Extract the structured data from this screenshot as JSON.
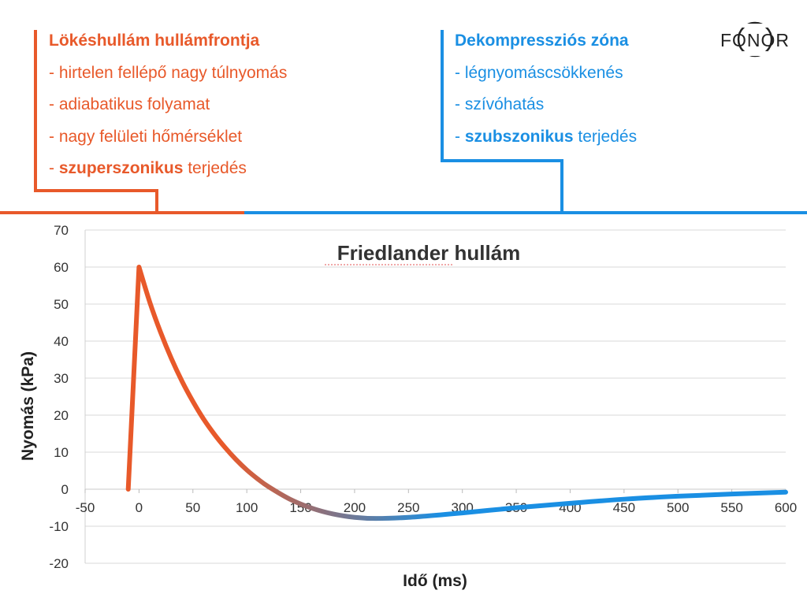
{
  "logo": {
    "text": "FONOR"
  },
  "callouts": {
    "left": {
      "title": "Lökéshullám hullámfrontja",
      "item1": "- hirtelen fellépő nagy túlnyomás",
      "item2": "- adiabatikus folyamat",
      "item3": "- nagy felületi hőmérséklet",
      "item4_prefix": "- ",
      "item4_bold": "szuperszonikus",
      "item4_rest": " terjedés"
    },
    "right": {
      "title": "Dekompressziós zóna",
      "item1": "- légnyomáscsökkenés",
      "item2": "- szívóhatás",
      "item3_prefix": "- ",
      "item3_bold": "szubszonikus",
      "item3_rest": " terjedés"
    }
  },
  "colors": {
    "shock": "#e8592a",
    "decompression": "#1a8fe3",
    "grid": "#d9d9d9",
    "text": "#222222"
  },
  "chart_data": {
    "type": "line",
    "title": "Friedlander hullám",
    "xlabel": "Idő (ms)",
    "ylabel": "Nyomás (kPa)",
    "xlim": [
      -50,
      600
    ],
    "ylim": [
      -20,
      70
    ],
    "x_ticks": [
      -50,
      0,
      50,
      100,
      150,
      200,
      250,
      300,
      350,
      400,
      450,
      500,
      550,
      600
    ],
    "y_ticks": [
      70,
      60,
      50,
      40,
      30,
      20,
      10,
      0,
      -10,
      -20
    ],
    "grid": true,
    "legend": "none",
    "series": [
      {
        "color_start": "#e8592a",
        "color_end": "#1a8fe3",
        "x": [
          -10,
          0,
          10,
          20,
          30,
          40,
          50,
          60,
          70,
          80,
          90,
          100,
          110,
          120,
          140,
          160,
          180,
          200,
          220,
          250,
          300,
          350,
          400,
          450,
          500,
          550,
          600
        ],
        "y": [
          0,
          60,
          50.5,
          42.4,
          35.3,
          29.1,
          23.7,
          18.9,
          14.8,
          11.2,
          8,
          5.2,
          2.8,
          0.7,
          -2.7,
          -5.1,
          -6.7,
          -7.6,
          -7.9,
          -7.6,
          -6.4,
          -5.0,
          -3.8,
          -2.7,
          -1.9,
          -1.3,
          -0.8
        ]
      }
    ]
  }
}
